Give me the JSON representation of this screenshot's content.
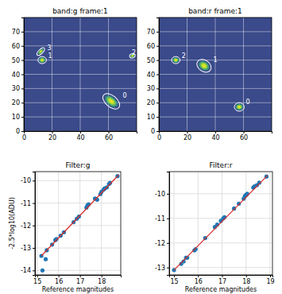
{
  "chart_data": [
    {
      "type": "image",
      "title": "band:g frame:1",
      "xlim": [
        0,
        80
      ],
      "ylim": [
        0,
        80
      ],
      "xticks": [
        0,
        20,
        40,
        60
      ],
      "yticks": [
        0,
        10,
        20,
        30,
        40,
        50,
        60,
        70
      ],
      "grid": true,
      "ellipses": [
        {
          "x": 62,
          "y": 21,
          "width": 14,
          "height": 8,
          "angle": -40,
          "label": "0"
        },
        {
          "x": 13,
          "y": 50,
          "width": 6,
          "height": 5,
          "angle": 0,
          "label": "1"
        },
        {
          "x": 77,
          "y": 53,
          "width": 4,
          "height": 3,
          "angle": 20,
          "label": "2"
        },
        {
          "x": 12,
          "y": 56,
          "width": 7,
          "height": 3,
          "angle": 45,
          "label": "3"
        }
      ]
    },
    {
      "type": "image",
      "title": "band:r frame:1",
      "xlim": [
        0,
        80
      ],
      "ylim": [
        0,
        80
      ],
      "xticks": [
        0,
        20,
        40,
        60
      ],
      "yticks": [
        0,
        10,
        20,
        30,
        40,
        50,
        60,
        70
      ],
      "grid": true,
      "ellipses": [
        {
          "x": 57,
          "y": 17,
          "width": 7,
          "height": 6,
          "angle": 0,
          "label": "0"
        },
        {
          "x": 32,
          "y": 46,
          "width": 11,
          "height": 8,
          "angle": -35,
          "label": "1"
        },
        {
          "x": 12,
          "y": 50,
          "width": 6,
          "height": 5,
          "angle": 0,
          "label": "2"
        }
      ]
    },
    {
      "type": "scatter",
      "title": "Filter:g",
      "x_label": "Reference magnitudes",
      "y_label": "-2.5*log10(ADU)",
      "xlim": [
        14.9,
        18.9
      ],
      "ylim": [
        -14.2,
        -9.6
      ],
      "xticks": [
        15,
        16,
        17,
        18
      ],
      "yticks": [
        -14,
        -13,
        -12,
        -11,
        -10
      ],
      "grid": true,
      "series": [
        {
          "type": "scatter",
          "color": "#1f77b4",
          "x": [
            15.2,
            15.25,
            15.4,
            15.45,
            15.7,
            15.85,
            15.9,
            16.1,
            16.25,
            16.7,
            16.85,
            16.95,
            17.3,
            17.35,
            17.4,
            17.7,
            17.8,
            17.95,
            18.0,
            18.1,
            18.15,
            18.25,
            18.35,
            18.4,
            18.75
          ],
          "values": [
            -13.35,
            -14.0,
            -13.5,
            -13.1,
            -12.85,
            -12.65,
            -12.6,
            -12.45,
            -12.3,
            -11.85,
            -11.7,
            -11.6,
            -11.2,
            -11.1,
            -11.05,
            -10.8,
            -10.85,
            -10.6,
            -10.5,
            -10.4,
            -10.35,
            -10.3,
            -10.15,
            -10.1,
            -9.8
          ]
        },
        {
          "type": "line",
          "color": "#d62728",
          "x": [
            15.2,
            18.8
          ],
          "values": [
            -13.35,
            -9.75
          ]
        }
      ]
    },
    {
      "type": "scatter",
      "title": "Filter:r",
      "x_label": "Reference magnitudes",
      "xlim": [
        14.8,
        19.1
      ],
      "ylim": [
        -13.3,
        -9.1
      ],
      "xticks": [
        15,
        16,
        17,
        18,
        19
      ],
      "yticks": [
        -13,
        -12,
        -11,
        -10
      ],
      "grid": true,
      "series": [
        {
          "type": "scatter",
          "color": "#1f77b4",
          "x": [
            15.0,
            15.3,
            15.4,
            15.5,
            15.55,
            15.85,
            15.9,
            16.3,
            16.7,
            16.8,
            16.95,
            17.05,
            17.1,
            17.5,
            17.7,
            17.9,
            17.95,
            18.0,
            18.05,
            18.3,
            18.35,
            18.45,
            18.55,
            18.85
          ],
          "values": [
            -13.1,
            -12.85,
            -12.75,
            -12.6,
            -12.6,
            -12.3,
            -12.25,
            -11.8,
            -11.35,
            -11.25,
            -11.1,
            -11.0,
            -10.95,
            -10.6,
            -10.4,
            -10.2,
            -10.1,
            -10.05,
            -10.0,
            -9.75,
            -9.7,
            -9.65,
            -9.55,
            -9.3
          ]
        },
        {
          "type": "line",
          "color": "#d62728",
          "x": [
            15.0,
            18.9
          ],
          "values": [
            -13.1,
            -9.25
          ]
        }
      ]
    }
  ]
}
